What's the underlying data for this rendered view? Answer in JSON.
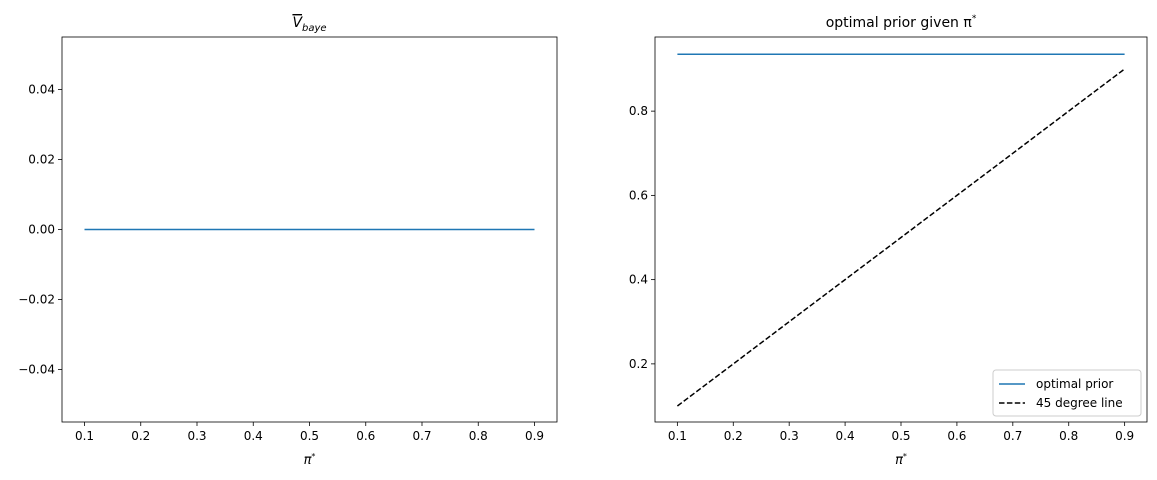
{
  "chart_data": [
    {
      "type": "line",
      "title": {
        "main": "V",
        "sub": "baye",
        "overline": true
      },
      "xlabel": {
        "main": "π",
        "sup": "*"
      },
      "ylabel": "",
      "xlim": [
        0.06,
        0.94
      ],
      "ylim": [
        -0.055,
        0.055
      ],
      "xticks": [
        "0.1",
        "0.2",
        "0.3",
        "0.4",
        "0.5",
        "0.6",
        "0.7",
        "0.8",
        "0.9"
      ],
      "yticks": [
        "−0.04",
        "−0.02",
        "0.00",
        "0.02",
        "0.04"
      ],
      "grid": false,
      "series": [
        {
          "color": "#1f77b4",
          "style": "solid",
          "x": [
            0.1,
            0.2,
            0.3,
            0.4,
            0.5,
            0.6,
            0.7,
            0.8,
            0.9
          ],
          "y": [
            0,
            0,
            0,
            0,
            0,
            0,
            0,
            0,
            0
          ]
        }
      ]
    },
    {
      "type": "line",
      "title": {
        "main": "optimal prior given π",
        "sup": "*"
      },
      "xlabel": {
        "main": "π",
        "sup": "*"
      },
      "ylabel": "",
      "xlim": [
        0.06,
        0.94
      ],
      "ylim": [
        0.062,
        0.976
      ],
      "xticks": [
        "0.1",
        "0.2",
        "0.3",
        "0.4",
        "0.5",
        "0.6",
        "0.7",
        "0.8",
        "0.9"
      ],
      "yticks": [
        "0.2",
        "0.4",
        "0.6",
        "0.8"
      ],
      "grid": false,
      "legend_position": "bottom-right",
      "series": [
        {
          "name": "optimal prior",
          "color": "#1f77b4",
          "style": "solid",
          "x": [
            0.1,
            0.2,
            0.3,
            0.4,
            0.5,
            0.6,
            0.7,
            0.8,
            0.9
          ],
          "y": [
            0.935,
            0.935,
            0.935,
            0.935,
            0.935,
            0.935,
            0.935,
            0.935,
            0.935
          ]
        },
        {
          "name": "45 degree line",
          "color": "#000000",
          "style": "dashed",
          "x": [
            0.1,
            0.2,
            0.3,
            0.4,
            0.5,
            0.6,
            0.7,
            0.8,
            0.9
          ],
          "y": [
            0.1,
            0.2,
            0.3,
            0.4,
            0.5,
            0.6,
            0.7,
            0.8,
            0.9
          ]
        }
      ]
    }
  ]
}
